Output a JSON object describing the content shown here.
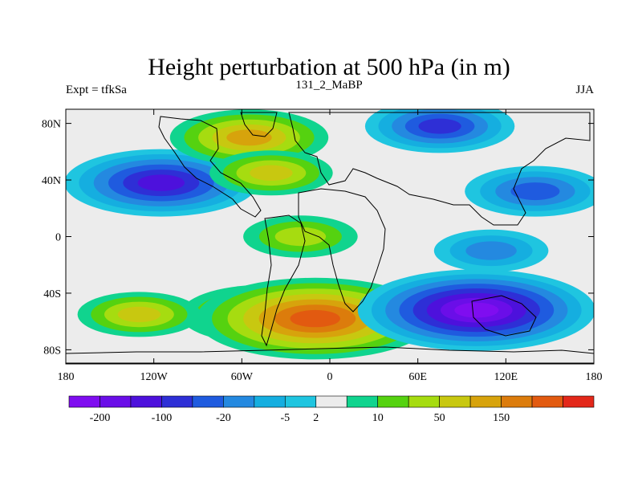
{
  "chart_data": {
    "type": "heatmap",
    "title": "Height perturbation at 500 hPa (in m)",
    "left_string": "Expt = tfkSa",
    "center_string": "131_2_MaBP",
    "right_string": "JJA",
    "variable": "500 hPa geopotential height perturbation",
    "units": "m",
    "xlim": [
      -180,
      180
    ],
    "ylim": [
      -90,
      90
    ],
    "x_ticks": [
      {
        "value": -180,
        "label": "180"
      },
      {
        "value": -120,
        "label": "120W"
      },
      {
        "value": -60,
        "label": "60W"
      },
      {
        "value": 0,
        "label": "0"
      },
      {
        "value": 60,
        "label": "60E"
      },
      {
        "value": 120,
        "label": "120E"
      },
      {
        "value": 180,
        "label": "180"
      }
    ],
    "y_ticks": [
      {
        "value": 80,
        "label": "80N"
      },
      {
        "value": 40,
        "label": "40N"
      },
      {
        "value": 0,
        "label": "0"
      },
      {
        "value": -40,
        "label": "40S"
      },
      {
        "value": -80,
        "label": "80S"
      }
    ],
    "colorbar": {
      "colors": [
        "#7f0df0",
        "#6a0ee8",
        "#4d11dc",
        "#2e2fd6",
        "#1f5bdf",
        "#2489e0",
        "#15aee0",
        "#1fc5e0",
        "#ececec",
        "#10d48e",
        "#55d210",
        "#a6dc10",
        "#c8c810",
        "#d7a30c",
        "#dc7c0c",
        "#e25a10",
        "#e3281a"
      ],
      "labels": [
        "-200",
        "-100",
        "-20",
        "-5",
        "2",
        "10",
        "50",
        "150"
      ],
      "label_after_box": [
        1,
        3,
        5,
        7,
        8,
        10,
        12,
        14
      ]
    },
    "features": [
      {
        "name": "North Pacific / North America low",
        "lon": -115,
        "lat": 38,
        "value": -100
      },
      {
        "name": "Eurasian Arctic low",
        "lon": 75,
        "lat": 78,
        "value": -50
      },
      {
        "name": "East Asia low",
        "lon": 140,
        "lat": 32,
        "value": -40
      },
      {
        "name": "Greenland high",
        "lon": -55,
        "lat": 70,
        "value": 60
      },
      {
        "name": "North Atlantic high",
        "lon": -40,
        "lat": 45,
        "value": 20
      },
      {
        "name": "Tropical Atlantic high",
        "lon": -20,
        "lat": 0,
        "value": 10
      },
      {
        "name": "South Atlantic high",
        "lon": -45,
        "lat": -55,
        "value": 70
      },
      {
        "name": "South Atlantic high core",
        "lon": -10,
        "lat": -58,
        "value": 150
      },
      {
        "name": "South Pacific high",
        "lon": -130,
        "lat": -55,
        "value": 20
      },
      {
        "name": "Southern Indian Ocean low",
        "lon": 100,
        "lat": -52,
        "value": -200
      },
      {
        "name": "Tropical Indian Ocean low",
        "lon": 110,
        "lat": -10,
        "value": -10
      }
    ]
  }
}
